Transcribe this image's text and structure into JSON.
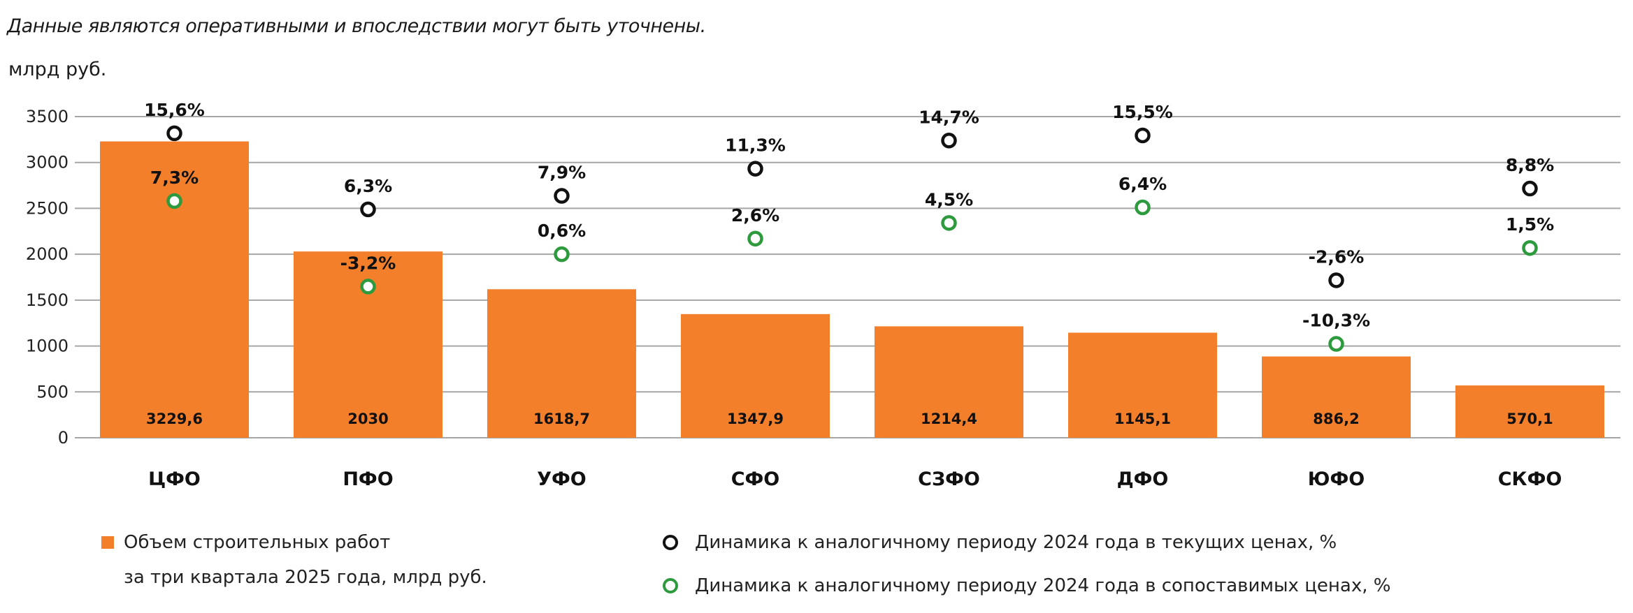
{
  "note": "Данные являются оперативными и впоследствии могут быть уточнены.",
  "colors": {
    "bar": "#f47f2a",
    "current": "#111111",
    "comparable": "#2e9a3e",
    "grid": "#a6a6a6"
  },
  "chart_data": {
    "type": "bar",
    "ylabel": "млрд руб.",
    "ylim": [
      0,
      3500
    ],
    "yticks": [
      "0",
      "500",
      "1000",
      "1500",
      "2000",
      "2500",
      "3000",
      "3500"
    ],
    "grid": true,
    "legend_position": "bottom",
    "categories": [
      "ЦФО",
      "ПФО",
      "УФО",
      "СФО",
      "СЗФО",
      "ДФО",
      "ЮФО",
      "СКФО"
    ],
    "series": [
      {
        "name": "Объем строительных работ за три квартала 2025 года, млрд руб.",
        "type": "bar",
        "values": [
          3229.6,
          2030,
          1618.7,
          1347.9,
          1214.4,
          1145.1,
          886.2,
          570.1
        ],
        "labels": [
          "3229,6",
          "2030",
          "1618,7",
          "1347,9",
          "1214,4",
          "1145,1",
          "886,2",
          "570,1"
        ]
      },
      {
        "name": "Динамика к аналогичному периоду 2024 года в текущих ценах, %",
        "type": "marker",
        "values": [
          15.6,
          6.3,
          7.9,
          11.3,
          14.7,
          15.5,
          -2.6,
          8.8
        ],
        "labels": [
          "15,6%",
          "6,3%",
          "7,9%",
          "11,3%",
          "14,7%",
          "15,5%",
          "-2,6%",
          "8,8%"
        ]
      },
      {
        "name": "Динамика к аналогичному периоду 2024 года в сопоставимых ценах, %",
        "type": "marker",
        "values": [
          7.3,
          -3.2,
          0.6,
          2.6,
          4.5,
          6.4,
          -10.3,
          1.5
        ],
        "labels": [
          "7,3%",
          "-3,2%",
          "0,6%",
          "2,6%",
          "4,5%",
          "6,4%",
          "-10,3%",
          "1,5%"
        ]
      }
    ]
  },
  "legend": {
    "bar_line1": "Объем строительных работ",
    "bar_line2": "за три квартала 2025 года, млрд руб.",
    "current": "Динамика к аналогичному периоду 2024 года в текущих ценах, %",
    "comparable": "Динамика к аналогичному периоду 2024 года в сопоставимых ценах, %"
  }
}
